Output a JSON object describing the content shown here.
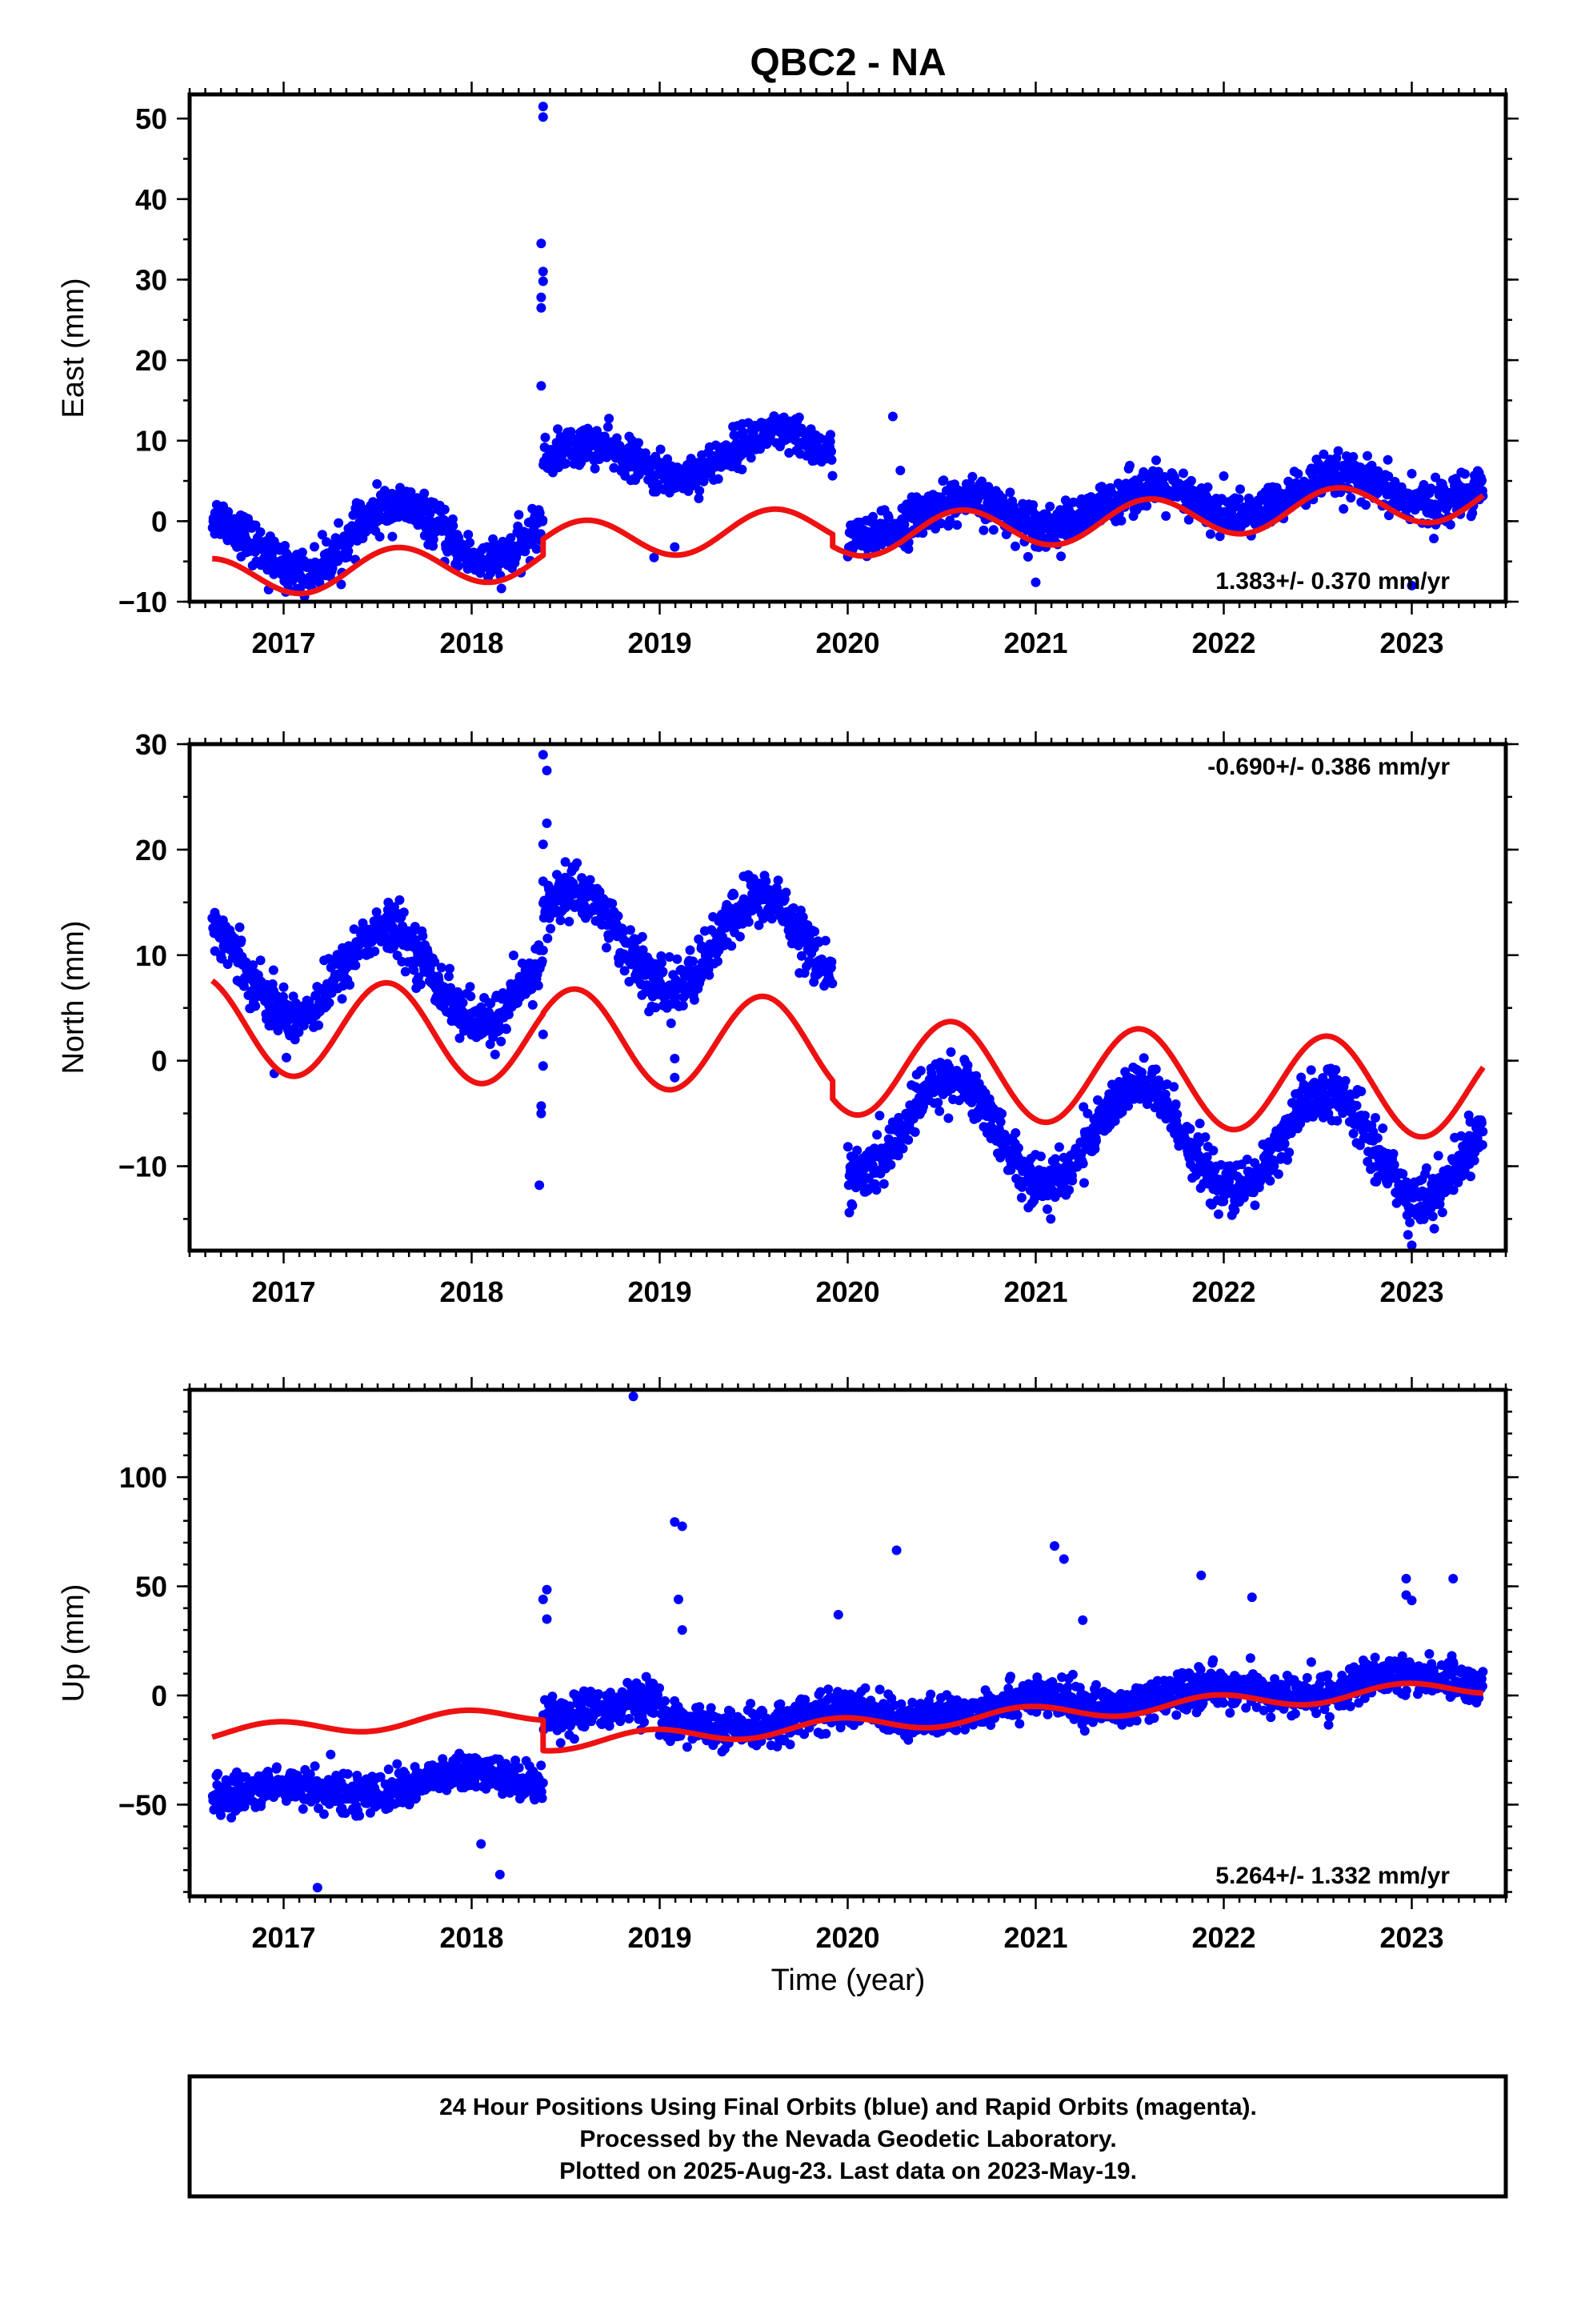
{
  "title": "QBC2 - NA",
  "xlabel": "Time (year)",
  "colors": {
    "final": "#0000ff",
    "model": "#ee1111",
    "axis": "#000000"
  },
  "footer": [
    "24 Hour Positions Using Final Orbits (blue) and Rapid Orbits (magenta).",
    "Processed by the Nevada Geodetic Laboratory.",
    "Plotted on 2025-Aug-23. Last data on 2023-May-19."
  ],
  "chart_data": [
    {
      "type": "scatter",
      "component": "east",
      "ylabel": "East (mm)",
      "rate": "1.383+/- 0.370 mm/yr",
      "rate_position": "bottom-right",
      "xlim": [
        2016.5,
        2023.5
      ],
      "ylim": [
        -10,
        53
      ],
      "xticks": [
        2017,
        2018,
        2019,
        2020,
        2021,
        2022,
        2023
      ],
      "yticks": [
        -10,
        0,
        10,
        20,
        30,
        40,
        50
      ],
      "series": [
        {
          "kind": "points",
          "segments": [
            {
              "t0": 2016.62,
              "t1": 2018.38,
              "offset": -3.4,
              "trend": 1.383,
              "amp": 3.8,
              "phase": 0.6,
              "noise": 1.3
            },
            {
              "t0": 2018.38,
              "t1": 2019.92,
              "offset": 4.3,
              "trend": 1.383,
              "amp": 2.3,
              "phase": 0.6,
              "noise": 1.2
            },
            {
              "t0": 2020.0,
              "t1": 2023.38,
              "offset": -5.0,
              "trend": 1.383,
              "amp": 2.0,
              "phase": 0.6,
              "noise": 1.3
            }
          ],
          "outliers": [
            [
              2018.38,
              51.5
            ],
            [
              2018.38,
              50.2
            ],
            [
              2018.37,
              34.5
            ],
            [
              2018.38,
              31.0
            ],
            [
              2018.38,
              29.8
            ],
            [
              2018.37,
              27.8
            ],
            [
              2018.37,
              26.5
            ],
            [
              2018.37,
              16.8
            ],
            [
              2018.97,
              -4.5
            ],
            [
              2019.08,
              -3.2
            ],
            [
              2020.24,
              13.0
            ],
            [
              2020.28,
              6.3
            ],
            [
              2016.92,
              -8.5
            ],
            [
              2021.0,
              -7.6
            ],
            [
              2022.0,
              5.6
            ],
            [
              2022.7,
              5.8
            ],
            [
              2023.0,
              5.9
            ],
            [
              2023.0,
              -8.0
            ]
          ]
        },
        {
          "kind": "model",
          "segments": [
            {
              "t0": 2016.62,
              "t1": 2018.38,
              "offset": -7.3,
              "trend": 1.383,
              "amp": 2.5,
              "phase": 0.6
            },
            {
              "t0": 2018.38,
              "t1": 2019.92,
              "offset": -5.3,
              "trend": 1.383,
              "amp": 2.5,
              "phase": 0.6
            },
            {
              "t0": 2019.92,
              "t1": 2023.38,
              "offset": -6.8,
              "trend": 1.383,
              "amp": 2.5,
              "phase": 0.6
            }
          ]
        }
      ]
    },
    {
      "type": "scatter",
      "component": "north",
      "ylabel": "North (mm)",
      "rate": "-0.690+/- 0.386 mm/yr",
      "rate_position": "top-right",
      "xlim": [
        2016.5,
        2023.5
      ],
      "ylim": [
        -18,
        30
      ],
      "xticks": [
        2017,
        2018,
        2019,
        2020,
        2021,
        2022,
        2023
      ],
      "yticks": [
        -10,
        0,
        10,
        20,
        30
      ],
      "series": [
        {
          "kind": "points",
          "segments": [
            {
              "t0": 2016.62,
              "t1": 2018.38,
              "offset": 8.9,
              "trend": -0.69,
              "amp": 4.3,
              "phase": 0.55,
              "noise": 1.2
            },
            {
              "t0": 2018.38,
              "t1": 2019.92,
              "offset": 13.0,
              "trend": -0.69,
              "amp": 4.5,
              "phase": 0.55,
              "noise": 1.3
            },
            {
              "t0": 2020.0,
              "t1": 2023.38,
              "offset": -3.7,
              "trend": -0.69,
              "amp": 4.8,
              "phase": 0.55,
              "noise": 1.2
            }
          ],
          "outliers": [
            [
              2018.38,
              29.0
            ],
            [
              2018.4,
              27.5
            ],
            [
              2018.4,
              22.5
            ],
            [
              2018.38,
              20.5
            ],
            [
              2018.38,
              17.0
            ],
            [
              2018.37,
              -4.3
            ],
            [
              2018.37,
              -5.0
            ],
            [
              2018.36,
              -11.8
            ],
            [
              2018.38,
              -0.5
            ],
            [
              2018.38,
              2.5
            ],
            [
              2019.08,
              -1.6
            ],
            [
              2019.08,
              0.2
            ],
            [
              2016.95,
              -1.2
            ],
            [
              2020.05,
              -8.5
            ],
            [
              2022.98,
              -16.5
            ],
            [
              2023.0,
              -17.5
            ],
            [
              2023.05,
              -13.8
            ],
            [
              2021.08,
              -15.0
            ]
          ]
        },
        {
          "kind": "model",
          "segments": [
            {
              "t0": 2016.62,
              "t1": 2018.38,
              "offset": 3.5,
              "trend": -0.69,
              "amp": 4.6,
              "phase": 0.55
            },
            {
              "t0": 2018.38,
              "t1": 2019.92,
              "offset": 3.6,
              "trend": -0.69,
              "amp": 4.6,
              "phase": 0.55
            },
            {
              "t0": 2019.92,
              "t1": 2023.38,
              "offset": 1.9,
              "trend": -0.69,
              "amp": 4.6,
              "phase": 0.55
            }
          ]
        }
      ]
    },
    {
      "type": "scatter",
      "component": "up",
      "ylabel": "Up (mm)",
      "rate": "5.264+/- 1.332 mm/yr",
      "rate_position": "bottom-right",
      "xlim": [
        2016.5,
        2023.5
      ],
      "ylim": [
        -92,
        140
      ],
      "xticks": [
        2017,
        2018,
        2019,
        2020,
        2021,
        2022,
        2023
      ],
      "yticks": [
        -50,
        0,
        50,
        100
      ],
      "series": [
        {
          "kind": "points",
          "segments": [
            {
              "t0": 2016.62,
              "t1": 2018.38,
              "offset": -47.0,
              "trend": 5.264,
              "amp": 3.5,
              "phase": 0.95,
              "noise": 4.2
            },
            {
              "t0": 2018.38,
              "t1": 2019.0,
              "offset": -5.5,
              "trend": 0.0,
              "amp": 3.0,
              "phase": 0.95,
              "noise": 4.5
            },
            {
              "t0": 2019.0,
              "t1": 2023.38,
              "offset": -28.0,
              "trend": 5.264,
              "amp": 3.5,
              "phase": 0.95,
              "noise": 4.3
            }
          ],
          "outliers": [
            [
              2018.86,
              137.0
            ],
            [
              2019.08,
              79.5
            ],
            [
              2019.12,
              77.5
            ],
            [
              2019.1,
              44.0
            ],
            [
              2019.12,
              30.0
            ],
            [
              2018.4,
              48.5
            ],
            [
              2018.38,
              44.0
            ],
            [
              2018.4,
              35.0
            ],
            [
              2020.26,
              66.5
            ],
            [
              2021.1,
              68.5
            ],
            [
              2021.15,
              62.5
            ],
            [
              2021.25,
              34.5
            ],
            [
              2019.95,
              37.0
            ],
            [
              2017.18,
              -88.0
            ],
            [
              2018.15,
              -82.0
            ],
            [
              2018.05,
              -68.0
            ],
            [
              2017.25,
              -27.0
            ],
            [
              2022.15,
              45.0
            ],
            [
              2021.88,
              55.0
            ],
            [
              2022.97,
              53.5
            ],
            [
              2023.22,
              53.5
            ],
            [
              2022.97,
              46.0
            ],
            [
              2023.0,
              43.5
            ],
            [
              2022.25,
              -10.0
            ]
          ]
        },
        {
          "kind": "model",
          "segments": [
            {
              "t0": 2016.62,
              "t1": 2018.38,
              "offset": -18.0,
              "trend": 5.264,
              "amp": 3.5,
              "phase": 0.95
            },
            {
              "t0": 2018.38,
              "t1": 2023.38,
              "offset": -32.0,
              "trend": 5.264,
              "amp": 3.5,
              "phase": 0.95
            }
          ]
        }
      ]
    }
  ]
}
